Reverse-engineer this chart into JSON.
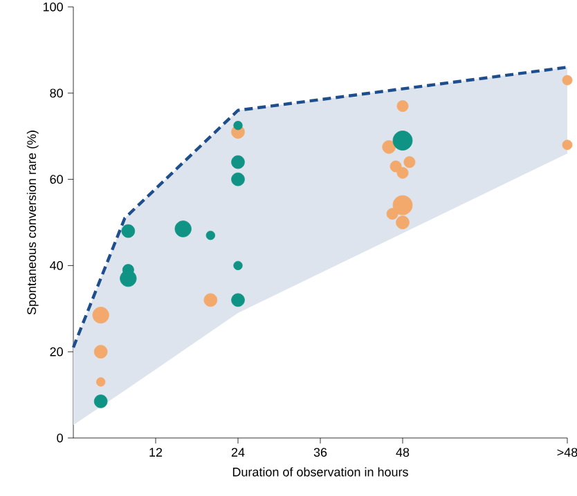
{
  "chart_data": {
    "type": "bubble",
    "xlabel": "Duration of observation in hours",
    "ylabel": "Spontaneous conversion rare (%)",
    "xlim": [
      0,
      72
    ],
    "ylim": [
      0,
      100
    ],
    "xticks": [
      12,
      24,
      36,
      48,
      {
        "value": 72,
        "label": ">48"
      }
    ],
    "yticks": [
      0,
      20,
      40,
      60,
      80,
      100
    ],
    "series": [
      {
        "type": "line",
        "color": "#1f4e8c",
        "line_style": "dashed",
        "x": [
          0,
          7.5,
          24,
          72
        ],
        "values": [
          21,
          51,
          76,
          86
        ],
        "lower": [
          3,
          11,
          29,
          66
        ],
        "upper": [
          21,
          51,
          76,
          86
        ]
      },
      {
        "color": "#f2a96b",
        "x": [
          4,
          4,
          4,
          20,
          24,
          48,
          46,
          47,
          49,
          48,
          48,
          46.5,
          48,
          72,
          72
        ],
        "values": [
          13,
          20,
          28.5,
          32,
          71,
          77,
          67.5,
          63,
          64,
          61.5,
          54,
          52,
          50,
          83,
          68
        ],
        "sizes": [
          0.2,
          0.45,
          0.7,
          0.45,
          0.45,
          0.33,
          0.45,
          0.33,
          0.33,
          0.33,
          1,
          0.33,
          0.45,
          0.25,
          0.25
        ]
      },
      {
        "color": "#0e9384",
        "x": [
          4,
          8,
          8,
          8,
          16,
          20,
          24,
          24,
          24,
          24,
          24,
          48
        ],
        "values": [
          8.5,
          48,
          39,
          37,
          48.5,
          47,
          72.5,
          64,
          60,
          40,
          32,
          69
        ],
        "sizes": [
          0.45,
          0.45,
          0.33,
          0.7,
          0.7,
          0.2,
          0.2,
          0.45,
          0.45,
          0.2,
          0.45,
          1
        ]
      }
    ]
  }
}
